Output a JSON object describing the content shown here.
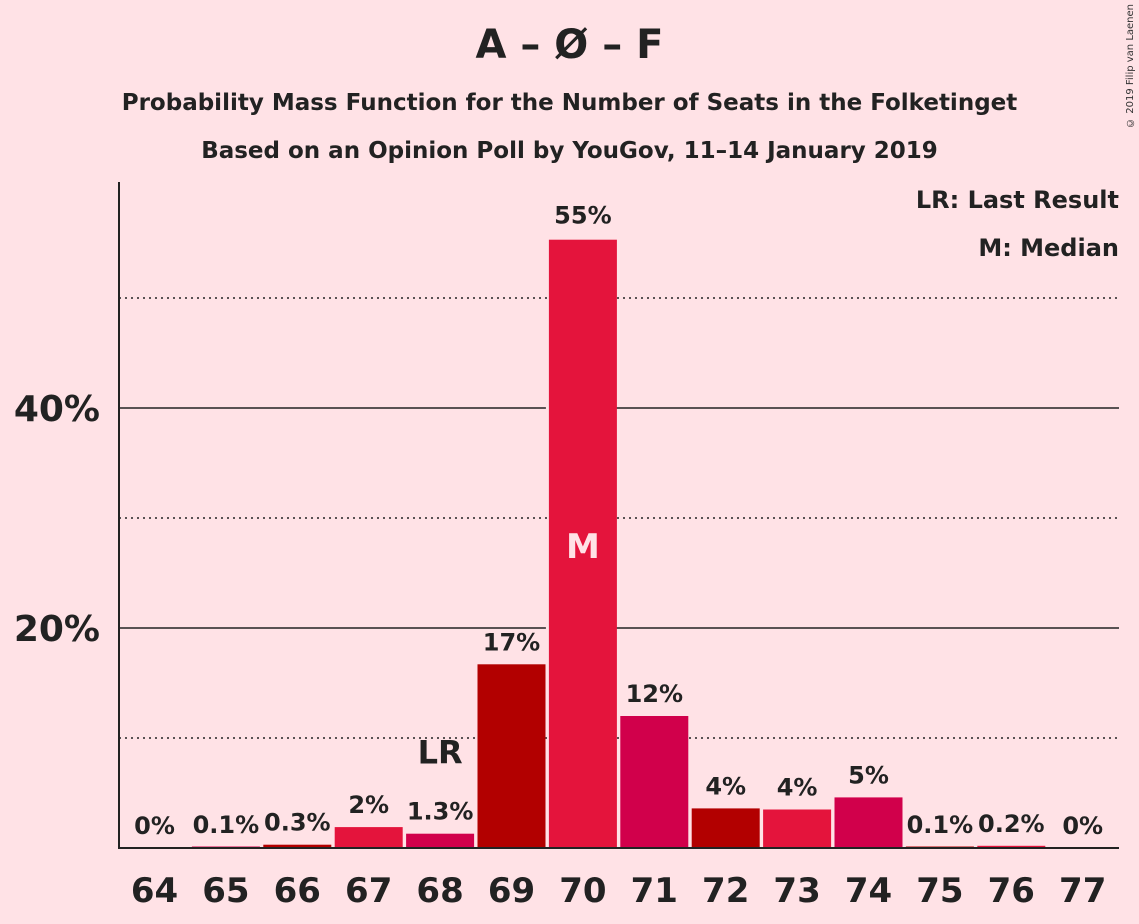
{
  "title": "A – Ø – F",
  "subtitle": "Probability Mass Function for the Number of Seats in the Folketinget",
  "subtitle2": "Based on an Opinion Poll by YouGov, 11–14 January 2019",
  "copyright": "© 2019 Filip van Laenen",
  "legend": {
    "last_result": "LR: Last Result",
    "median": "M: Median"
  },
  "colors": {
    "background": "#ffe2e6",
    "bar_palette": [
      "#e4143c",
      "#d1004b",
      "#b20000"
    ]
  },
  "chart_data": {
    "type": "bar",
    "title": "A – Ø – F",
    "xlabel": "",
    "ylabel": "",
    "categories": [
      "64",
      "65",
      "66",
      "67",
      "68",
      "69",
      "70",
      "71",
      "72",
      "73",
      "74",
      "75",
      "76",
      "77"
    ],
    "values": [
      0,
      0.1,
      0.3,
      1.9,
      1.3,
      16.7,
      55.3,
      12.0,
      3.6,
      3.5,
      4.6,
      0.1,
      0.2,
      0
    ],
    "labels": [
      "0%",
      "0.1%",
      "0.3%",
      "2%",
      "1.3%",
      "17%",
      "55%",
      "12%",
      "4%",
      "4%",
      "5%",
      "0.1%",
      "0.2%",
      "0%"
    ],
    "y_ticks": [
      {
        "value": 20,
        "label": "20%"
      },
      {
        "value": 40,
        "label": "40%"
      }
    ],
    "minor_gridlines": [
      10,
      30,
      50
    ],
    "ylim": [
      0,
      60
    ],
    "last_result_category": "68",
    "last_result_marker": "LR",
    "median_category": "70",
    "median_marker": "M",
    "grid": true,
    "legend_position": "top-right"
  }
}
